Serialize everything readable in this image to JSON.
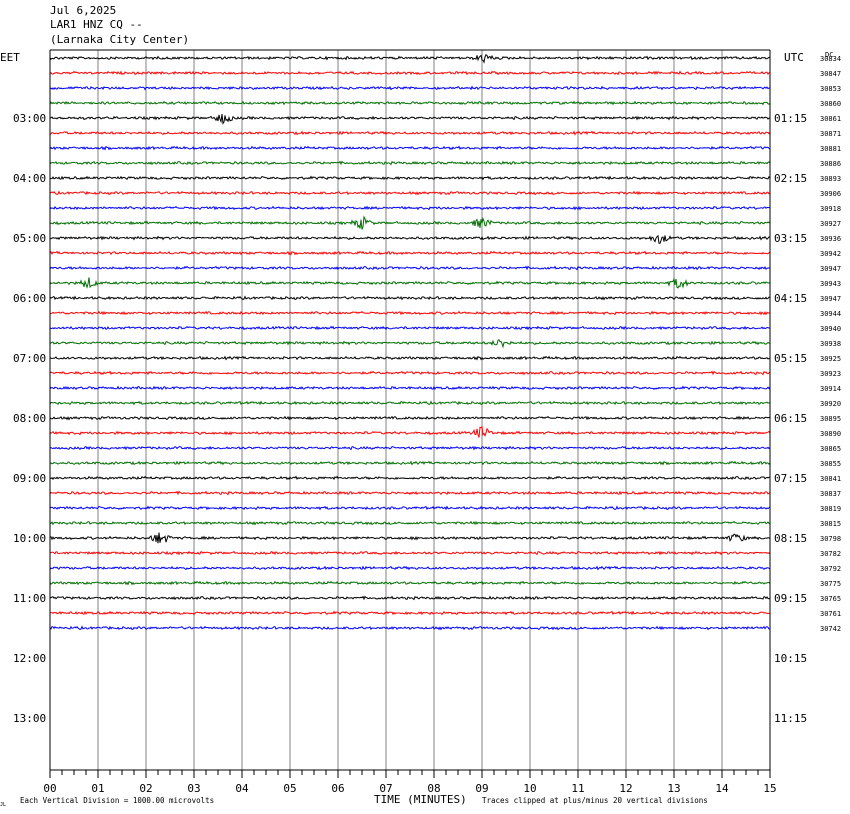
{
  "header": {
    "date": "Jul 6,2025",
    "station": "LAR1 HNZ CQ --",
    "location": "(Larnaka City Center)"
  },
  "left_timezone": "EET",
  "right_timezone": "UTC",
  "dc_label": "DC",
  "colors": {
    "traces": [
      "#000000",
      "#ff0000",
      "#0000ff",
      "#007000"
    ],
    "grid": "#808080",
    "frame": "#000000"
  },
  "footer": {
    "scale_note": "Each Vertical Division = 1000.00 microvolts",
    "xlabel": "TIME (MINUTES)",
    "clip_note": "Traces clipped at plus/minus 20 vertical divisions",
    "corner_mark": "JL"
  },
  "chart_data": {
    "type": "line",
    "title": "LAR1 HNZ CQ --",
    "xlabel": "TIME (MINUTES)",
    "xlim": [
      0,
      15
    ],
    "x_ticks": [
      "00",
      "01",
      "02",
      "03",
      "04",
      "05",
      "06",
      "07",
      "08",
      "09",
      "10",
      "11",
      "12",
      "13",
      "14",
      "15"
    ],
    "rows_total": 48,
    "left_hour_labels": [
      "03:00",
      "04:00",
      "05:00",
      "06:00",
      "07:00",
      "08:00",
      "09:00",
      "10:00",
      "11:00",
      "12:00",
      "13:00"
    ],
    "right_hour_labels": [
      "01:15",
      "02:15",
      "03:15",
      "04:15",
      "05:15",
      "06:15",
      "07:15",
      "08:15",
      "09:15",
      "10:15",
      "11:15"
    ],
    "dc_offsets": [
      30834,
      30847,
      30853,
      30860,
      30861,
      30871,
      30881,
      30886,
      30893,
      30906,
      30918,
      30927,
      30936,
      30942,
      30947,
      30943,
      30947,
      30944,
      30940,
      30938,
      30925,
      30923,
      30914,
      30920,
      30895,
      30890,
      30865,
      30855,
      30841,
      30837,
      30819,
      30815,
      30798,
      30782,
      30792,
      30775,
      30765,
      30761,
      30742
    ],
    "trace_color_cycle": [
      "black",
      "red",
      "blue",
      "green"
    ],
    "events": [
      {
        "row": 0,
        "minute": 9.05,
        "amplitude": 4
      },
      {
        "row": 4,
        "minute": 3.6,
        "amplitude": 5
      },
      {
        "row": 11,
        "minute": 6.5,
        "amplitude": 6
      },
      {
        "row": 11,
        "minute": 9.0,
        "amplitude": 5
      },
      {
        "row": 12,
        "minute": 12.7,
        "amplitude": 5
      },
      {
        "row": 15,
        "minute": 0.8,
        "amplitude": 5
      },
      {
        "row": 15,
        "minute": 13.1,
        "amplitude": 5
      },
      {
        "row": 19,
        "minute": 9.4,
        "amplitude": 4
      },
      {
        "row": 25,
        "minute": 9.0,
        "amplitude": 6
      },
      {
        "row": 32,
        "minute": 2.3,
        "amplitude": 6
      },
      {
        "row": 32,
        "minute": 14.3,
        "amplitude": 4
      }
    ]
  }
}
